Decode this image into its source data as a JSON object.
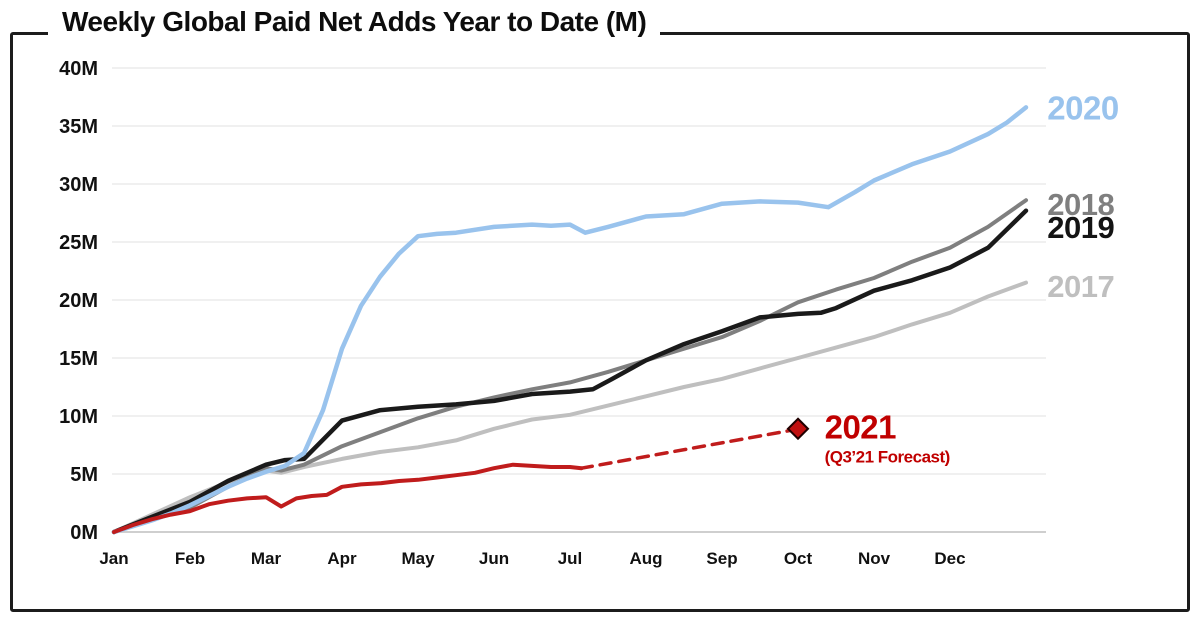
{
  "title": "Weekly Global Paid Net Adds Year to Date (M)",
  "chart_data": {
    "type": "line",
    "title": "Weekly Global Paid Net Adds Year to Date (M)",
    "xlabel": "",
    "ylabel": "",
    "xlim": [
      0,
      12
    ],
    "ylim": [
      0,
      40
    ],
    "grid": true,
    "legend_position": "inline-right-labels",
    "x_ticks": [
      "Jan",
      "Feb",
      "Mar",
      "Apr",
      "May",
      "Jun",
      "Jul",
      "Aug",
      "Sep",
      "Oct",
      "Nov",
      "Dec"
    ],
    "y_ticks": [
      "0M",
      "5M",
      "10M",
      "15M",
      "20M",
      "25M",
      "30M",
      "35M",
      "40M"
    ],
    "y_tick_values": [
      0,
      5,
      10,
      15,
      20,
      25,
      30,
      35,
      40
    ],
    "colors": {
      "y2017": "#bfbfbf",
      "y2018": "#7f7f7f",
      "y2019": "#1a1a1a",
      "y2020": "#99c3ed",
      "y2021": "#c01c1c",
      "y2021_label": "#c00000",
      "grid": "#ececec",
      "baseline": "#cfcfcf"
    },
    "series": [
      {
        "name": "2017",
        "color": "#bfbfbf",
        "width": 4,
        "style": "solid",
        "x": [
          0,
          0.5,
          1,
          1.5,
          1.9,
          2.2,
          2.5,
          3,
          3.5,
          4,
          4.5,
          5,
          5.5,
          6,
          6.5,
          7,
          7.5,
          8,
          8.5,
          9,
          9.5,
          10,
          10.5,
          11,
          11.5,
          12
        ],
        "y": [
          0,
          1.5,
          3.0,
          4.3,
          5.4,
          5.1,
          5.6,
          6.3,
          6.9,
          7.3,
          7.9,
          8.9,
          9.7,
          10.1,
          10.9,
          11.7,
          12.5,
          13.2,
          14.1,
          15.0,
          15.9,
          16.8,
          17.9,
          18.9,
          20.3,
          21.5
        ]
      },
      {
        "name": "2018",
        "color": "#7f7f7f",
        "width": 4,
        "style": "solid",
        "x": [
          0,
          0.5,
          1,
          1.5,
          2,
          2.2,
          2.5,
          3,
          3.5,
          4,
          4.5,
          5,
          5.5,
          6,
          6.5,
          7,
          7.5,
          8,
          8.5,
          9,
          9.5,
          10,
          10.5,
          11,
          11.5,
          12
        ],
        "y": [
          0,
          1.1,
          2.1,
          3.9,
          5.5,
          5.3,
          5.8,
          7.4,
          8.6,
          9.8,
          10.8,
          11.6,
          12.3,
          12.9,
          13.8,
          14.8,
          15.8,
          16.8,
          18.2,
          19.8,
          20.9,
          21.9,
          23.3,
          24.5,
          26.3,
          28.6
        ]
      },
      {
        "name": "2019",
        "color": "#1a1a1a",
        "width": 4.5,
        "style": "solid",
        "x": [
          0,
          0.5,
          1,
          1.5,
          2,
          2.25,
          2.5,
          3,
          3.5,
          4,
          4.5,
          5,
          5.5,
          6,
          6.3,
          6.5,
          7,
          7.5,
          8,
          8.5,
          9,
          9.3,
          9.5,
          10,
          10.5,
          11,
          11.5,
          12
        ],
        "y": [
          0,
          1.3,
          2.6,
          4.4,
          5.8,
          6.2,
          6.3,
          9.6,
          10.5,
          10.8,
          11.0,
          11.3,
          11.9,
          12.1,
          12.3,
          13.0,
          14.8,
          16.2,
          17.3,
          18.5,
          18.8,
          18.9,
          19.3,
          20.8,
          21.7,
          22.8,
          24.5,
          27.7
        ]
      },
      {
        "name": "2020",
        "color": "#99c3ed",
        "width": 4.5,
        "style": "solid",
        "x": [
          0,
          0.25,
          0.5,
          0.75,
          1,
          1.25,
          1.5,
          1.75,
          2,
          2.25,
          2.5,
          2.75,
          3,
          3.25,
          3.5,
          3.75,
          4,
          4.25,
          4.5,
          5,
          5.5,
          5.75,
          6,
          6.2,
          6.5,
          7,
          7.5,
          8,
          8.5,
          9,
          9.4,
          9.75,
          10,
          10.5,
          11,
          11.5,
          11.75,
          12
        ],
        "y": [
          0,
          0.5,
          1.0,
          1.6,
          2.3,
          3.1,
          3.9,
          4.6,
          5.2,
          5.7,
          6.8,
          10.5,
          15.8,
          19.5,
          22.0,
          24.0,
          25.5,
          25.7,
          25.8,
          26.3,
          26.5,
          26.4,
          26.5,
          25.8,
          26.3,
          27.2,
          27.4,
          28.3,
          28.5,
          28.4,
          28.0,
          29.3,
          30.3,
          31.7,
          32.8,
          34.3,
          35.3,
          36.6
        ]
      },
      {
        "name": "2021",
        "color": "#c01c1c",
        "width": 4,
        "style": "solid",
        "x": [
          0,
          0.25,
          0.5,
          0.75,
          1,
          1.25,
          1.5,
          1.75,
          2,
          2.2,
          2.4,
          2.6,
          2.8,
          3,
          3.25,
          3.5,
          3.75,
          4,
          4.25,
          4.5,
          4.75,
          5,
          5.25,
          5.5,
          5.75,
          6,
          6.15
        ],
        "y": [
          0,
          0.6,
          1.1,
          1.5,
          1.8,
          2.4,
          2.7,
          2.9,
          3.0,
          2.2,
          2.9,
          3.1,
          3.2,
          3.9,
          4.1,
          4.2,
          4.4,
          4.5,
          4.7,
          4.9,
          5.1,
          5.5,
          5.8,
          5.7,
          5.6,
          5.6,
          5.5
        ]
      },
      {
        "name": "2021-forecast",
        "color": "#c01c1c",
        "width": 3.5,
        "style": "dashed",
        "dash": "11,8",
        "x": [
          6.15,
          8.92
        ],
        "y": [
          5.5,
          8.78
        ]
      }
    ],
    "markers": [
      {
        "id": "q3-21-forecast-point",
        "shape": "diamond",
        "x": 9.0,
        "y": 8.9,
        "size": 10,
        "fill": "#c01010",
        "stroke": "#200000"
      }
    ],
    "annotations": [
      {
        "id": "2020",
        "text": "2020",
        "x": 12.28,
        "y": 36.6,
        "color": "#99c3ed",
        "size": 33,
        "anchor": "start"
      },
      {
        "id": "2018",
        "text": "2018",
        "x": 12.28,
        "y": 28.3,
        "color": "#7f7f7f",
        "size": 31,
        "anchor": "start"
      },
      {
        "id": "2019",
        "text": "2019",
        "x": 12.28,
        "y": 26.3,
        "color": "#141414",
        "size": 31,
        "anchor": "start"
      },
      {
        "id": "2017",
        "text": "2017",
        "x": 12.28,
        "y": 21.2,
        "color": "#bfbfbf",
        "size": 31,
        "anchor": "start"
      },
      {
        "id": "2021",
        "text": "2021",
        "x": 9.35,
        "y": 9.1,
        "color": "#c00000",
        "size": 33,
        "anchor": "start"
      },
      {
        "id": "2021-forecast-note",
        "text": "(Q3’21 Forecast)",
        "x": 9.35,
        "y": 6.5,
        "color": "#c00000",
        "size": 17,
        "anchor": "start"
      }
    ]
  }
}
